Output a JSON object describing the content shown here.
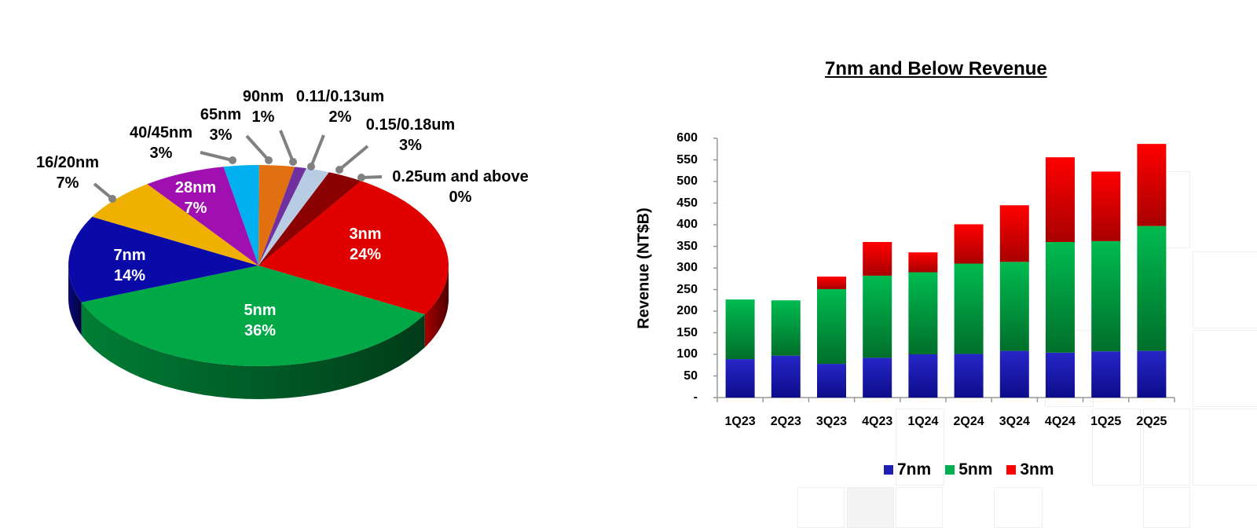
{
  "colors": {
    "7nm": "#1f1fb4",
    "5nm": "#00b050",
    "3nm": "#ff0000"
  },
  "chart_data": [
    {
      "type": "pie",
      "title": "",
      "style": "3d",
      "slices": [
        {
          "label": "3nm",
          "value": 24,
          "color": "#e00000"
        },
        {
          "label": "5nm",
          "value": 36,
          "color": "#00a846"
        },
        {
          "label": "7nm",
          "value": 14,
          "color": "#0a0aa8"
        },
        {
          "label": "16/20nm",
          "value": 7,
          "color": "#f0b000"
        },
        {
          "label": "28nm",
          "value": 7,
          "color": "#a010b0"
        },
        {
          "label": "40/45nm",
          "value": 3,
          "color": "#00b0f0"
        },
        {
          "label": "65nm",
          "value": 3,
          "color": "#e07010"
        },
        {
          "label": "90nm",
          "value": 1,
          "color": "#7030a0"
        },
        {
          "label": "0.11/0.13um",
          "value": 2,
          "color": "#b8cce4"
        },
        {
          "label": "0.15/0.18um",
          "value": 3,
          "color": "#8b0000"
        },
        {
          "label": "0.25um and above",
          "value": 0,
          "color": "#c00000"
        }
      ]
    },
    {
      "type": "bar",
      "stacked": true,
      "title": "7nm and Below Revenue",
      "xlabel": "",
      "ylabel": "Revenue (NT$B)",
      "ylim": [
        0,
        600
      ],
      "yticks": [
        "-",
        "50",
        "100",
        "150",
        "200",
        "250",
        "300",
        "350",
        "400",
        "450",
        "500",
        "550",
        "600"
      ],
      "grid": false,
      "legend_position": "bottom",
      "categories": [
        "1Q23",
        "2Q23",
        "3Q23",
        "4Q23",
        "1Q24",
        "2Q24",
        "3Q24",
        "4Q24",
        "1Q25",
        "2Q25"
      ],
      "series": [
        {
          "name": "7nm",
          "values": [
            89,
            97,
            78,
            92,
            100,
            101,
            108,
            104,
            107,
            108
          ]
        },
        {
          "name": "5nm",
          "values": [
            138,
            128,
            173,
            190,
            190,
            209,
            206,
            256,
            255,
            289
          ]
        },
        {
          "name": "3nm",
          "values": [
            0,
            0,
            29,
            78,
            46,
            91,
            131,
            196,
            161,
            190
          ]
        }
      ],
      "totals": [
        227,
        225,
        280,
        360,
        336,
        401,
        445,
        556,
        523,
        587
      ]
    }
  ],
  "pie_labels": {
    "s3nm": {
      "name": "3nm",
      "pct": "24%"
    },
    "s5nm": {
      "name": "5nm",
      "pct": "36%"
    },
    "s7nm": {
      "name": "7nm",
      "pct": "14%"
    },
    "s28nm": {
      "name": "28nm",
      "pct": "7%"
    },
    "s16nm": {
      "name": "16/20nm",
      "pct": "7%"
    },
    "s40nm": {
      "name": "40/45nm",
      "pct": "3%"
    },
    "s65nm": {
      "name": "65nm",
      "pct": "3%"
    },
    "s90nm": {
      "name": "90nm",
      "pct": "1%"
    },
    "s011": {
      "name": "0.11/0.13um",
      "pct": "2%"
    },
    "s015": {
      "name": "0.15/0.18um",
      "pct": "3%"
    },
    "s025": {
      "name": "0.25um and above",
      "pct": "0%"
    }
  },
  "bar_chart": {
    "title": "7nm and Below Revenue",
    "ylabel": "Revenue (NT$B)",
    "legend": [
      "7nm",
      "5nm",
      "3nm"
    ]
  }
}
